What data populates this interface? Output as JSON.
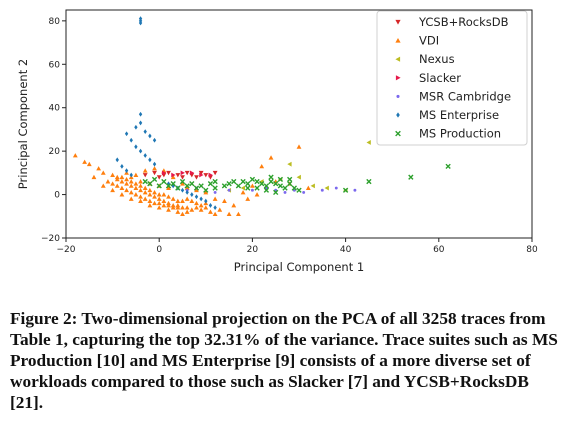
{
  "chart_data": {
    "type": "scatter",
    "xlabel": "Principal Component 1",
    "ylabel": "Principal Component 2",
    "xlim": [
      -20,
      80
    ],
    "ylim": [
      -20,
      85
    ],
    "xticks": [
      -20,
      0,
      20,
      40,
      60,
      80
    ],
    "yticks": [
      -20,
      0,
      20,
      40,
      60,
      80
    ],
    "xtick_labels": [
      "−20",
      "0",
      "20",
      "40",
      "60",
      "80"
    ],
    "ytick_labels": [
      "−20",
      "0",
      "20",
      "40",
      "60",
      "80"
    ],
    "grid": false,
    "legend_position": "top-right",
    "series": [
      {
        "name": "YCSB+RocksDB",
        "color": "#d62728",
        "marker": "tri_down",
        "points": [
          [
            -3,
            9
          ],
          [
            0,
            8
          ],
          [
            2,
            10
          ],
          [
            4,
            9
          ],
          [
            5,
            8
          ],
          [
            6,
            10
          ],
          [
            7,
            9
          ],
          [
            8,
            8
          ],
          [
            9,
            10
          ],
          [
            10,
            9
          ],
          [
            11,
            8
          ],
          [
            12,
            10
          ],
          [
            -1,
            10
          ],
          [
            1,
            9
          ]
        ]
      },
      {
        "name": "VDI",
        "color": "#ff7f0e",
        "marker": "tri_up",
        "points": [
          [
            -18,
            18
          ],
          [
            -15,
            14
          ],
          [
            -12,
            10
          ],
          [
            -10,
            9
          ],
          [
            -9,
            7
          ],
          [
            -8,
            6
          ],
          [
            -7,
            5
          ],
          [
            -6,
            4
          ],
          [
            -5,
            3
          ],
          [
            -4,
            2
          ],
          [
            -3,
            1
          ],
          [
            -2,
            0
          ],
          [
            -1,
            -1
          ],
          [
            0,
            -2
          ],
          [
            1,
            -3
          ],
          [
            2,
            -4
          ],
          [
            3,
            -5
          ],
          [
            4,
            -5
          ],
          [
            5,
            -6
          ],
          [
            6,
            -6
          ],
          [
            7,
            -7
          ],
          [
            -11,
            6
          ],
          [
            -10,
            5
          ],
          [
            -9,
            4
          ],
          [
            -8,
            3
          ],
          [
            -7,
            2
          ],
          [
            -6,
            1
          ],
          [
            -5,
            0
          ],
          [
            -4,
            -1
          ],
          [
            -3,
            -2
          ],
          [
            -2,
            -3
          ],
          [
            -1,
            -4
          ],
          [
            0,
            -4
          ],
          [
            1,
            -5
          ],
          [
            2,
            -5
          ],
          [
            3,
            -6
          ],
          [
            4,
            -6
          ],
          [
            -9,
            8
          ],
          [
            -8,
            8
          ],
          [
            -7,
            7
          ],
          [
            -6,
            6
          ],
          [
            -5,
            5
          ],
          [
            -4,
            4
          ],
          [
            -3,
            3
          ],
          [
            -2,
            2
          ],
          [
            -1,
            1
          ],
          [
            0,
            0
          ],
          [
            1,
            0
          ],
          [
            2,
            -1
          ],
          [
            3,
            -2
          ],
          [
            4,
            -3
          ],
          [
            5,
            -3
          ],
          [
            6,
            -2
          ],
          [
            7,
            -3
          ],
          [
            8,
            -4
          ],
          [
            9,
            -5
          ],
          [
            10,
            -6
          ],
          [
            11,
            -8
          ],
          [
            12,
            -9
          ],
          [
            15,
            -9
          ],
          [
            17,
            -9
          ],
          [
            13,
            -7
          ],
          [
            8,
            -6
          ],
          [
            9,
            -7
          ],
          [
            -6,
            8
          ],
          [
            -4,
            6
          ],
          [
            -2,
            5
          ],
          [
            0,
            4
          ],
          [
            2,
            3
          ],
          [
            -5,
            9
          ],
          [
            -3,
            11
          ],
          [
            -1,
            12
          ],
          [
            1,
            11
          ],
          [
            3,
            8
          ],
          [
            5,
            5
          ],
          [
            6,
            3
          ],
          [
            8,
            2
          ],
          [
            10,
            1
          ],
          [
            22,
            13
          ],
          [
            24,
            17
          ],
          [
            30,
            22
          ],
          [
            20,
            4
          ],
          [
            25,
            6
          ],
          [
            28,
            5
          ],
          [
            32,
            3
          ],
          [
            18,
            1
          ],
          [
            -7,
            10
          ],
          [
            -13,
            12
          ],
          [
            -16,
            15
          ],
          [
            -14,
            8
          ],
          [
            -12,
            4
          ],
          [
            -10,
            2
          ],
          [
            -8,
            0
          ],
          [
            -6,
            -2
          ],
          [
            -4,
            -3
          ],
          [
            -2,
            -5
          ],
          [
            0,
            -6
          ],
          [
            2,
            -7
          ],
          [
            4,
            -8
          ],
          [
            5,
            -9
          ],
          [
            6,
            -8
          ],
          [
            10,
            -4
          ],
          [
            12,
            -2
          ],
          [
            14,
            -3
          ],
          [
            16,
            -5
          ],
          [
            19,
            -2
          ],
          [
            21,
            0
          ]
        ]
      },
      {
        "name": "Nexus",
        "color": "#bcbd22",
        "marker": "tri_left",
        "points": [
          [
            45,
            24
          ],
          [
            28,
            14
          ],
          [
            22,
            6
          ],
          [
            26,
            7
          ],
          [
            30,
            8
          ],
          [
            33,
            4
          ],
          [
            36,
            3
          ],
          [
            40,
            2
          ],
          [
            18,
            3
          ],
          [
            15,
            2
          ]
        ]
      },
      {
        "name": "Slacker",
        "color": "#e6194b",
        "marker": "tri_right",
        "points": [
          [
            1,
            10
          ],
          [
            3,
            9
          ],
          [
            5,
            10
          ],
          [
            7,
            10
          ],
          [
            9,
            9
          ],
          [
            11,
            9
          ]
        ]
      },
      {
        "name": "MSR Cambridge",
        "color": "#7b68ee",
        "marker": "point",
        "points": [
          [
            12,
            1
          ],
          [
            15,
            2
          ],
          [
            20,
            2
          ],
          [
            23,
            3
          ],
          [
            25,
            2
          ],
          [
            27,
            1
          ],
          [
            29,
            2
          ],
          [
            31,
            1
          ],
          [
            35,
            2
          ],
          [
            38,
            3
          ],
          [
            42,
            2
          ],
          [
            8,
            3
          ],
          [
            6,
            2
          ]
        ]
      },
      {
        "name": "MS Enterprise",
        "color": "#1f77b4",
        "marker": "diamond",
        "points": [
          [
            -4,
            81
          ],
          [
            -4,
            80
          ],
          [
            -4,
            79
          ],
          [
            -4,
            37
          ],
          [
            -4,
            33
          ],
          [
            -5,
            31
          ],
          [
            -3,
            29
          ],
          [
            -2,
            27
          ],
          [
            -1,
            25
          ],
          [
            -7,
            28
          ],
          [
            -6,
            25
          ],
          [
            -5,
            22
          ],
          [
            -4,
            20
          ],
          [
            -3,
            18
          ],
          [
            -2,
            16
          ],
          [
            -1,
            14
          ],
          [
            -9,
            16
          ],
          [
            -8,
            13
          ],
          [
            -7,
            11
          ],
          [
            -6,
            9
          ],
          [
            4,
            3
          ],
          [
            6,
            1
          ],
          [
            8,
            -1
          ],
          [
            10,
            -3
          ],
          [
            11,
            -5
          ],
          [
            12,
            -6
          ],
          [
            9,
            -2
          ],
          [
            7,
            0
          ],
          [
            5,
            2
          ],
          [
            3,
            4
          ],
          [
            2,
            5
          ]
        ]
      },
      {
        "name": "MS Production",
        "color": "#2ca02c",
        "marker": "x",
        "points": [
          [
            -3,
            6
          ],
          [
            -1,
            7
          ],
          [
            1,
            6
          ],
          [
            3,
            5
          ],
          [
            5,
            6
          ],
          [
            7,
            5
          ],
          [
            9,
            4
          ],
          [
            11,
            5
          ],
          [
            12,
            6
          ],
          [
            -2,
            5
          ],
          [
            0,
            4
          ],
          [
            2,
            4
          ],
          [
            4,
            3
          ],
          [
            6,
            4
          ],
          [
            8,
            3
          ],
          [
            10,
            2
          ],
          [
            12,
            3
          ],
          [
            18,
            6
          ],
          [
            19,
            5
          ],
          [
            20,
            7
          ],
          [
            21,
            6
          ],
          [
            22,
            5
          ],
          [
            23,
            4
          ],
          [
            24,
            6
          ],
          [
            25,
            5
          ],
          [
            26,
            4
          ],
          [
            27,
            3
          ],
          [
            28,
            5
          ],
          [
            29,
            3
          ],
          [
            30,
            2
          ],
          [
            19,
            3
          ],
          [
            21,
            3
          ],
          [
            23,
            2
          ],
          [
            25,
            1
          ],
          [
            17,
            4
          ],
          [
            24,
            8
          ],
          [
            26,
            7
          ],
          [
            28,
            7
          ],
          [
            40,
            2
          ],
          [
            45,
            6
          ],
          [
            54,
            8
          ],
          [
            62,
            13
          ],
          [
            14,
            4
          ],
          [
            15,
            5
          ],
          [
            16,
            6
          ]
        ]
      }
    ]
  },
  "caption": {
    "text": "Figure 2: Two-dimensional projection on the PCA of all 3258 traces from Table 1, capturing the top 32.31% of the variance. Trace suites such as MS Production [10] and MS Enterprise [9] consists of a more diverse set of workloads compared to those such as Slacker [7] and YCSB+RocksDB [21]."
  }
}
